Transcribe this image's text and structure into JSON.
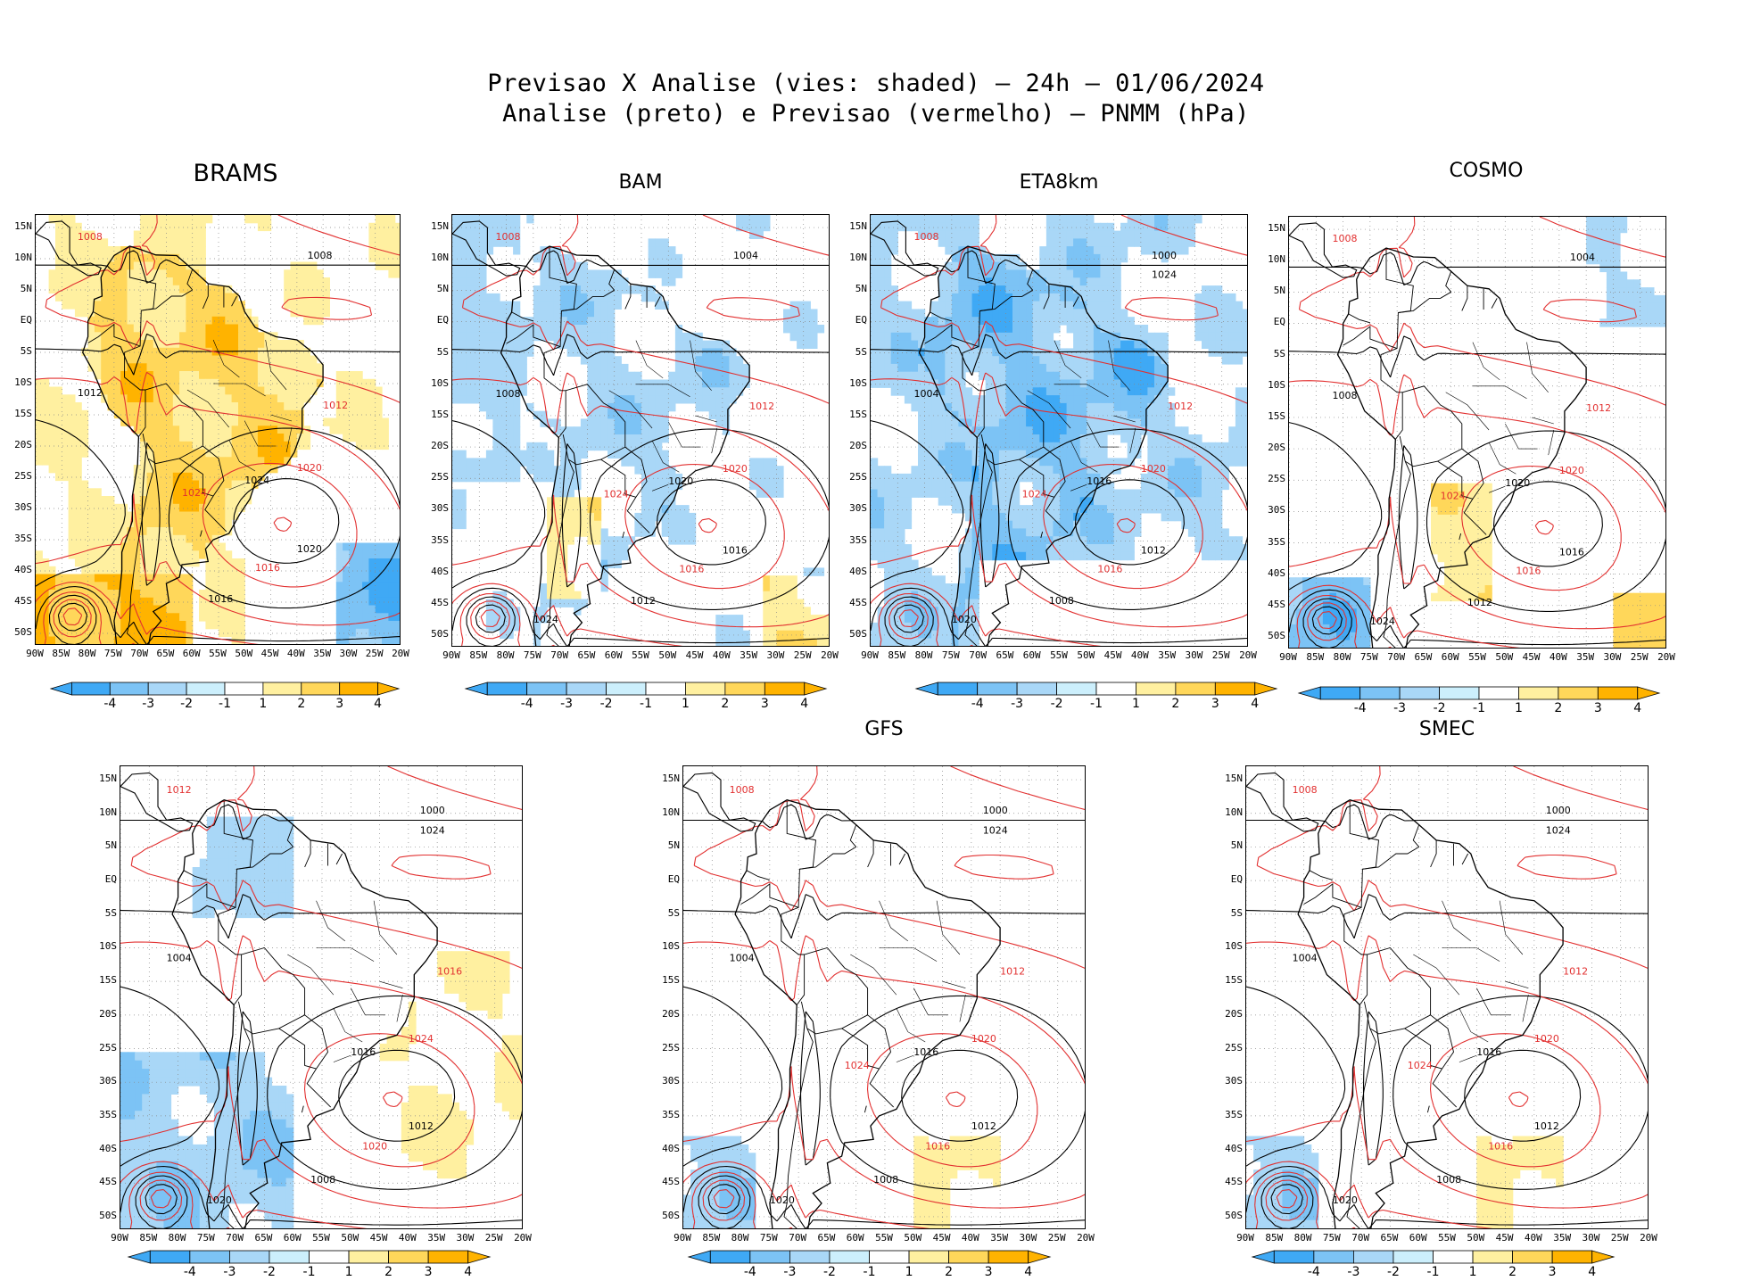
{
  "header": {
    "line1": "Previsao X Analise (vies: shaded) — 24h — 01/06/2024",
    "line2": "Analise (preto) e Previsao (vermelho) — PNMM (hPa)"
  },
  "axes": {
    "lat_labels": [
      "15N",
      "10N",
      "5N",
      "EQ",
      "5S",
      "10S",
      "15S",
      "20S",
      "25S",
      "30S",
      "35S",
      "40S",
      "45S",
      "50S"
    ],
    "lon_labels": [
      "90W",
      "85W",
      "80W",
      "75W",
      "70W",
      "65W",
      "60W",
      "55W",
      "50W",
      "45W",
      "40W",
      "35W",
      "30W",
      "25W",
      "20W"
    ]
  },
  "colorbar": {
    "labels": [
      "-4",
      "-3",
      "-2",
      "-1",
      "1",
      "2",
      "3",
      "4"
    ],
    "colors": [
      "#3fa9f5",
      "#7cc3f5",
      "#a9d7f7",
      "#cceffc",
      "#ffffff",
      "#fff0a0",
      "#ffd75a",
      "#ffb300"
    ]
  },
  "legend": {
    "analysis_color": "#000000",
    "forecast_color": "#e23030"
  },
  "chart_data": [
    {
      "type": "heatmap",
      "model": "BRAMS",
      "title": "BRAMS",
      "bias": "mostly positive (+1 to +4 hPa) over continent and Atlantic",
      "xlabel": "",
      "ylabel": "",
      "xlim": [
        -90,
        -20
      ],
      "ylim": [
        -52,
        17
      ],
      "contour_labels_analysis": [
        "1008",
        "1012",
        "1016",
        "1020",
        "1024"
      ],
      "contour_labels_forecast": [
        "1008",
        "1012",
        "1016",
        "1020",
        "1024"
      ],
      "shade": "warm"
    },
    {
      "type": "heatmap",
      "model": "BAM",
      "title": "BAM",
      "bias": "weak negative (-1 to -2 hPa) over continent",
      "xlabel": "",
      "ylabel": "",
      "xlim": [
        -90,
        -20
      ],
      "ylim": [
        -52,
        17
      ],
      "contour_labels_analysis": [
        "1004",
        "1008",
        "1012",
        "1016",
        "1020",
        "1024"
      ],
      "contour_labels_forecast": [
        "1008",
        "1012",
        "1016",
        "1020",
        "1024"
      ],
      "shade": "coolweak"
    },
    {
      "type": "heatmap",
      "model": "ETA8km",
      "title": "ETA8km",
      "bias": "negative (-1 to -4 hPa) over continent",
      "xlabel": "",
      "ylabel": "",
      "xlim": [
        -90,
        -20
      ],
      "ylim": [
        -52,
        17
      ],
      "contour_labels_analysis": [
        "1000",
        "1004",
        "1008",
        "1012",
        "1016",
        "1020",
        "1024"
      ],
      "contour_labels_forecast": [
        "1008",
        "1012",
        "1016",
        "1020",
        "1024"
      ],
      "shade": "cool"
    },
    {
      "type": "heatmap",
      "model": "COSMO",
      "title": "COSMO",
      "bias": "mixed, near zero; positive off southeast coast",
      "xlabel": "",
      "ylabel": "",
      "xlim": [
        -90,
        -20
      ],
      "ylim": [
        -52,
        17
      ],
      "contour_labels_analysis": [
        "1004",
        "1008",
        "1012",
        "1016",
        "1020",
        "1024"
      ],
      "contour_labels_forecast": [
        "1008",
        "1012",
        "1016",
        "1020",
        "1024"
      ],
      "shade": "mixed"
    },
    {
      "type": "heatmap",
      "model": "",
      "title": "",
      "bias": "negative over southern continent and Pacific",
      "xlabel": "",
      "ylabel": "",
      "xlim": [
        -90,
        -20
      ],
      "ylim": [
        -52,
        17
      ],
      "contour_labels_analysis": [
        "1000",
        "1004",
        "1008",
        "1012",
        "1016",
        "1020",
        "1024"
      ],
      "contour_labels_forecast": [
        "1012",
        "1016",
        "1020",
        "1024"
      ],
      "shade": "coolsouth"
    },
    {
      "type": "heatmap",
      "model": "GFS",
      "title": "GFS",
      "bias": "near zero, small negative spots",
      "xlabel": "",
      "ylabel": "",
      "xlim": [
        -90,
        -20
      ],
      "ylim": [
        -52,
        17
      ],
      "contour_labels_analysis": [
        "1000",
        "1004",
        "1008",
        "1012",
        "1016",
        "1020",
        "1024"
      ],
      "contour_labels_forecast": [
        "1008",
        "1012",
        "1016",
        "1020",
        "1024"
      ],
      "shade": "neutral"
    },
    {
      "type": "heatmap",
      "model": "SMEC",
      "title": "SMEC",
      "bias": "near zero, small negative spots",
      "xlabel": "",
      "ylabel": "",
      "xlim": [
        -90,
        -20
      ],
      "ylim": [
        -52,
        17
      ],
      "contour_labels_analysis": [
        "1000",
        "1004",
        "1008",
        "1012",
        "1016",
        "1020",
        "1024"
      ],
      "contour_labels_forecast": [
        "1008",
        "1012",
        "1016",
        "1020",
        "1024"
      ],
      "shade": "neutral"
    }
  ]
}
